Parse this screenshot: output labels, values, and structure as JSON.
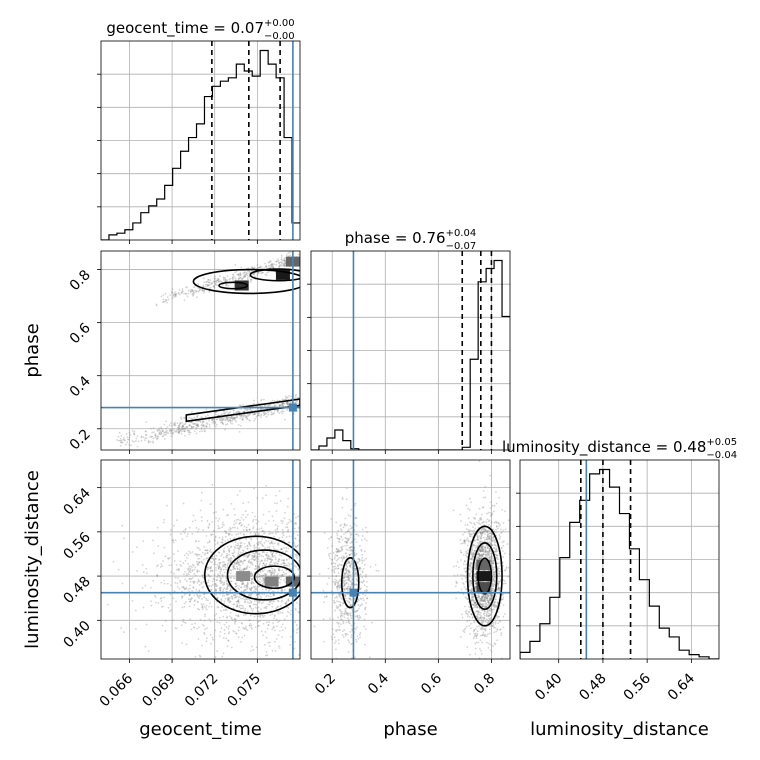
{
  "chart_data": {
    "type": "corner",
    "params": [
      "geocent_time",
      "phase",
      "luminosity_distance"
    ],
    "truths": {
      "geocent_time": 0.0775,
      "phase": 0.28,
      "luminosity_distance": 0.45
    },
    "titles": [
      {
        "name": "geocent_time",
        "median": "0.07",
        "plus": "+0.00",
        "minus": "−0.00"
      },
      {
        "name": "phase",
        "median": "0.76",
        "plus": "+0.04",
        "minus": "−0.07"
      },
      {
        "name": "luminosity_distance",
        "median": "0.48",
        "plus": "+0.05",
        "minus": "−0.04"
      }
    ],
    "xlabels": [
      "geocent_time",
      "phase",
      "luminosity_distance"
    ],
    "ylabels": [
      "",
      "phase",
      "luminosity_distance"
    ],
    "ranges": {
      "geocent_time": [
        0.064,
        0.078
      ],
      "phase": [
        0.12,
        0.87
      ],
      "luminosity_distance": [
        0.33,
        0.69
      ]
    },
    "ticks": {
      "geocent_time": [
        "0.066",
        "0.069",
        "0.072",
        "0.075"
      ],
      "phase": [
        "0.2",
        "0.4",
        "0.6",
        "0.8"
      ],
      "luminosity_distance": [
        "0.40",
        "0.48",
        "0.56",
        "0.64"
      ]
    },
    "histograms": {
      "geocent_time": {
        "edges_from": 0.064,
        "edges_to": 0.078,
        "counts": [
          0.0,
          0.3,
          0.4,
          0.6,
          1.0,
          1.6,
          2.0,
          2.4,
          3.2,
          4.2,
          5.2,
          6.0,
          6.8,
          8.4,
          9.0,
          9.3,
          9.5,
          10.3,
          9.9,
          9.6,
          11.1,
          10.3,
          9.5,
          6.0,
          1.0
        ],
        "quantiles": [
          0.0718,
          0.0744,
          0.0766
        ]
      },
      "phase": {
        "edges_from": 0.12,
        "edges_to": 0.87,
        "counts": [
          0.0,
          0.3,
          0.9,
          1.5,
          0.7,
          0.1,
          0.0,
          0.0,
          0.0,
          0.0,
          0.0,
          0.0,
          0.0,
          0.0,
          0.0,
          0.0,
          0.0,
          0.0,
          0.0,
          0.2,
          6.8,
          12.6,
          13.6,
          14.2,
          10.0
        ],
        "quantiles": [
          0.69,
          0.76,
          0.8
        ]
      },
      "luminosity_distance": {
        "edges_from": 0.33,
        "edges_to": 0.69,
        "counts": [
          0.3,
          0.8,
          1.6,
          2.8,
          4.6,
          6.2,
          7.2,
          8.4,
          8.6,
          7.8,
          6.6,
          5.0,
          3.6,
          2.4,
          1.4,
          1.0,
          0.4,
          0.2,
          0.1,
          0.0
        ],
        "quantiles": [
          0.44,
          0.48,
          0.53
        ]
      }
    },
    "scatter_modes": {
      "geocent_time_phase": [
        {
          "x_from": 0.065,
          "x_to": 0.0778,
          "y_from": 0.15,
          "y_to": 0.3,
          "y_spread": 0.016,
          "n": 700
        },
        {
          "x_from": 0.0678,
          "x_to": 0.0778,
          "y_from": 0.68,
          "y_to": 0.84,
          "y_spread": 0.013,
          "n": 420
        }
      ],
      "geocent_time_luminosity_distance": [
        {
          "x_center": 0.0745,
          "x_spread": 0.003,
          "y_center": 0.48,
          "y_spread": 0.055,
          "n": 2200
        }
      ],
      "phase_luminosity_distance": [
        {
          "x_center": 0.26,
          "x_spread": 0.035,
          "y_center": 0.47,
          "y_spread": 0.055,
          "n": 700
        },
        {
          "x_center": 0.77,
          "x_spread": 0.035,
          "y_center": 0.48,
          "y_spread": 0.055,
          "n": 1900
        }
      ]
    },
    "density_cells": {
      "geocent_time_phase": [
        {
          "x": 0.0768,
          "y": 0.78,
          "level": 0.9
        },
        {
          "x": 0.0739,
          "y": 0.74,
          "level": 0.8
        },
        {
          "x": 0.0775,
          "y": 0.83,
          "level": 0.6
        }
      ],
      "geocent_time_luminosity_distance": [
        {
          "x": 0.076,
          "y": 0.47,
          "level": 0.5
        },
        {
          "x": 0.074,
          "y": 0.48,
          "level": 0.45
        },
        {
          "x": 0.0775,
          "y": 0.47,
          "level": 0.6
        }
      ],
      "phase_luminosity_distance": [
        {
          "x": 0.77,
          "y": 0.48,
          "level": 0.9
        },
        {
          "x": 0.77,
          "y": 0.46,
          "level": 0.7
        },
        {
          "x": 0.77,
          "y": 0.5,
          "level": 0.6
        }
      ]
    },
    "contours": {
      "geocent_time_phase": [
        {
          "type": "band",
          "x_from": 0.07,
          "x_to": 0.078,
          "y_from": 0.24,
          "y_to": 0.3,
          "width": 0.012
        },
        {
          "type": "blob",
          "cx": 0.0745,
          "cy": 0.755,
          "rx": 0.004,
          "ry": 0.045
        },
        {
          "type": "blob",
          "cx": 0.0765,
          "cy": 0.78,
          "rx": 0.002,
          "ry": 0.022
        },
        {
          "type": "blob",
          "cx": 0.0733,
          "cy": 0.74,
          "rx": 0.001,
          "ry": 0.012
        }
      ],
      "geocent_time_luminosity_distance": [
        {
          "type": "blob",
          "cx": 0.0749,
          "cy": 0.482,
          "rx": 0.0036,
          "ry": 0.07
        },
        {
          "type": "blob",
          "cx": 0.0755,
          "cy": 0.482,
          "rx": 0.0026,
          "ry": 0.045
        },
        {
          "type": "blob",
          "cx": 0.0762,
          "cy": 0.478,
          "rx": 0.0014,
          "ry": 0.02
        }
      ],
      "phase_luminosity_distance": [
        {
          "type": "blob",
          "cx": 0.268,
          "cy": 0.468,
          "rx": 0.032,
          "ry": 0.045
        },
        {
          "type": "blob",
          "cx": 0.775,
          "cy": 0.48,
          "rx": 0.065,
          "ry": 0.09
        },
        {
          "type": "blob",
          "cx": 0.775,
          "cy": 0.48,
          "rx": 0.045,
          "ry": 0.06
        },
        {
          "type": "blob",
          "cx": 0.775,
          "cy": 0.48,
          "rx": 0.025,
          "ry": 0.032
        }
      ]
    },
    "colors": {
      "truth": "#4682b4",
      "hist": "#000000",
      "grid": "#b0b0b0",
      "points": "#888888"
    }
  }
}
